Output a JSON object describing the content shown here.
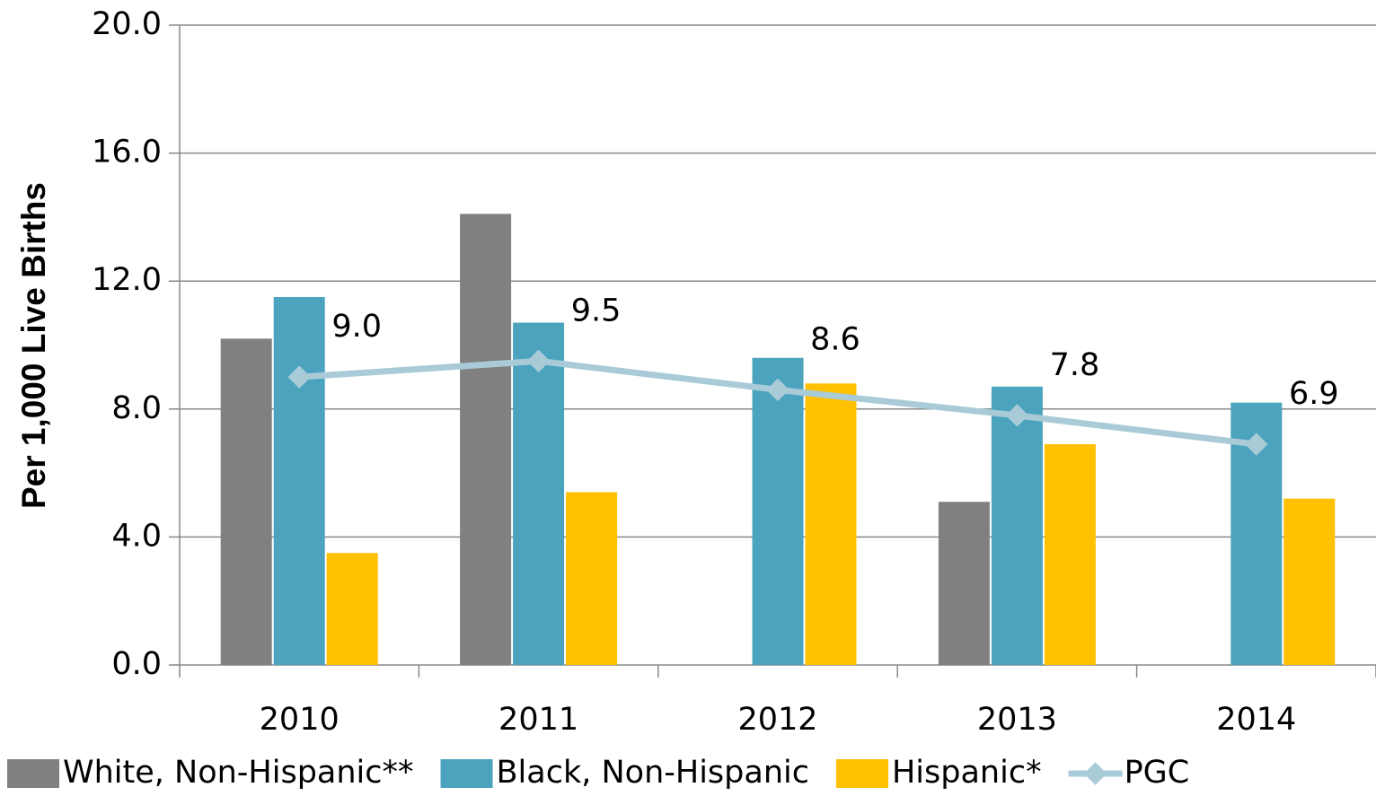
{
  "chart_data": {
    "type": "bar",
    "y_label": "Per 1,000 Live Births",
    "categories": [
      "2010",
      "2011",
      "2012",
      "2013",
      "2014"
    ],
    "series": [
      {
        "name": "White, Non-Hispanic**",
        "color": "#808080",
        "values": [
          10.2,
          14.1,
          null,
          5.1,
          null
        ]
      },
      {
        "name": "Black, Non-Hispanic",
        "color": "#4ba3be",
        "values": [
          11.5,
          10.7,
          9.6,
          8.7,
          8.2
        ]
      },
      {
        "name": "Hispanic*",
        "color": "#ffc000",
        "values": [
          3.5,
          5.4,
          8.8,
          6.9,
          5.2
        ]
      },
      {
        "name": "PGC",
        "type": "line",
        "color": "#a9cbd8",
        "values": [
          9.0,
          9.5,
          8.6,
          7.8,
          6.9
        ],
        "value_labels": [
          "9.0",
          "9.5",
          "8.6",
          "7.8",
          "6.9"
        ]
      }
    ],
    "ylim": [
      0,
      20
    ],
    "yticks": [
      {
        "value": 0,
        "label": "0.0"
      },
      {
        "value": 4,
        "label": "4.0"
      },
      {
        "value": 8,
        "label": "8.0"
      },
      {
        "value": 12,
        "label": "12.0"
      },
      {
        "value": 16,
        "label": "16.0"
      },
      {
        "value": 20,
        "label": "20.0"
      }
    ],
    "grid": true,
    "legend": "bottom"
  }
}
